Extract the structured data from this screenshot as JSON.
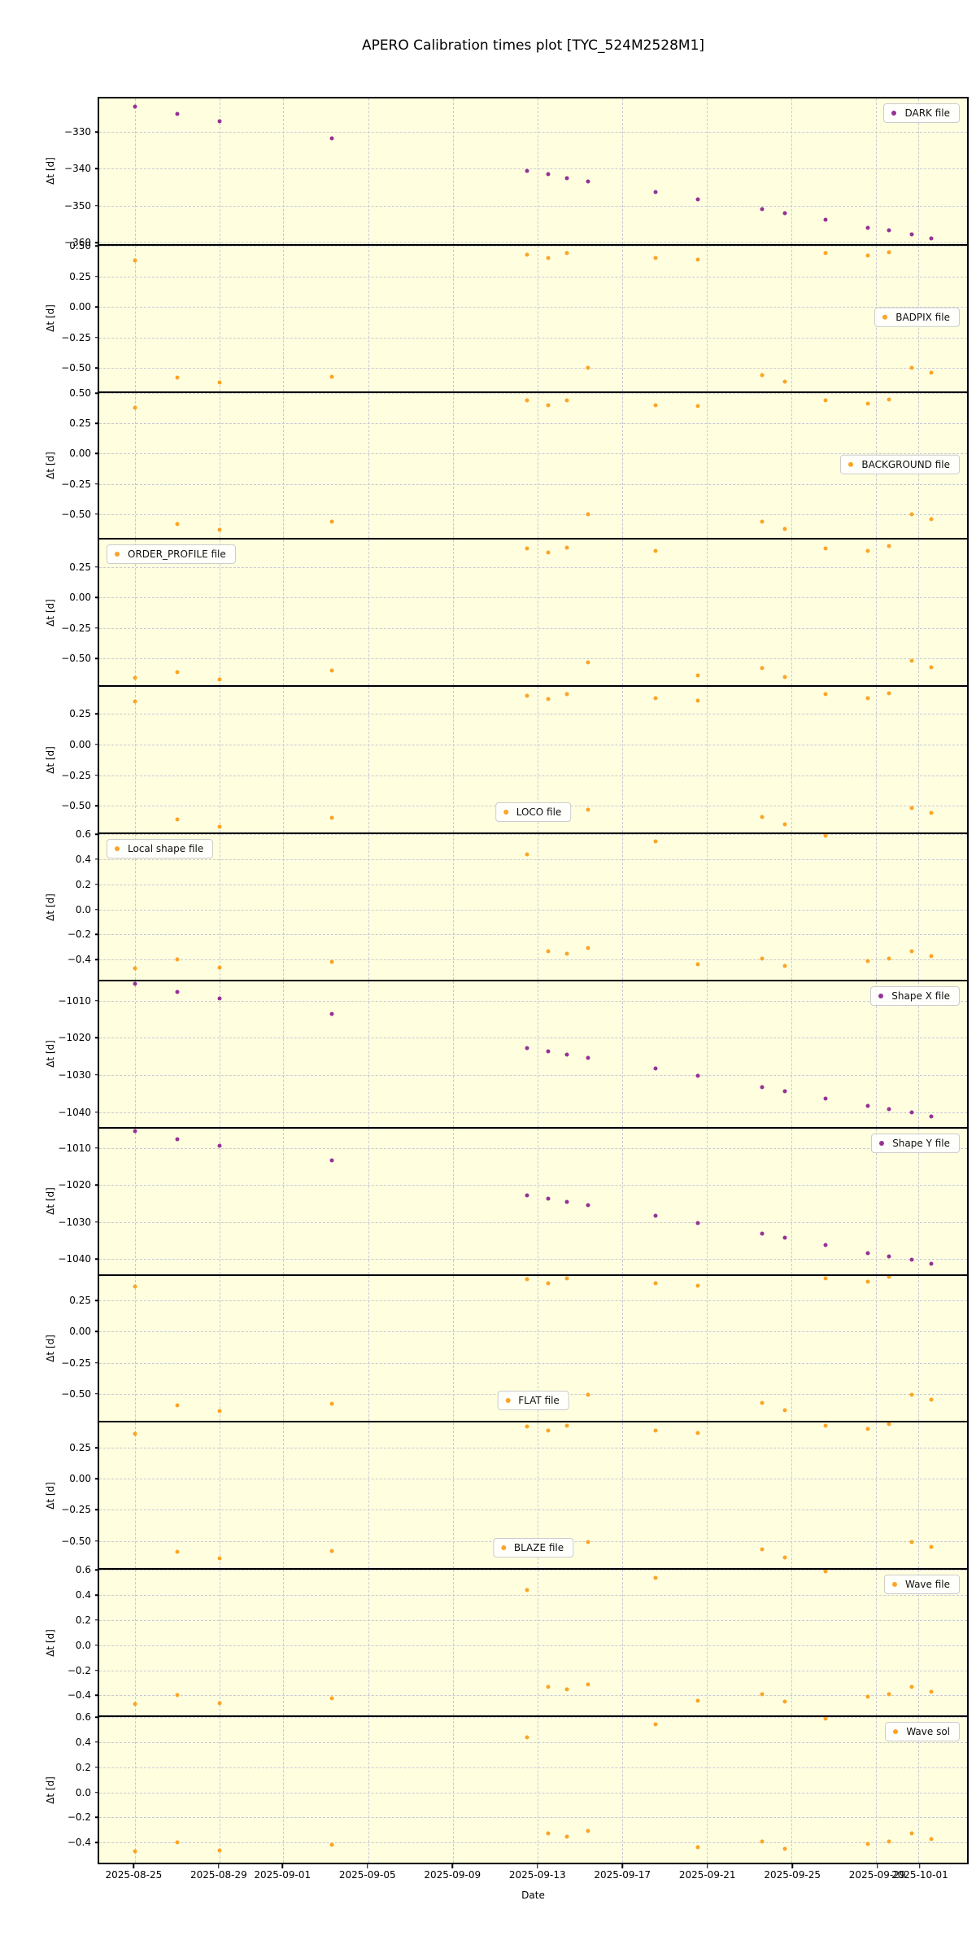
{
  "title": "APERO Calibration times plot [TYC_524M2528M1]",
  "xlabel": "Date",
  "ylabel": "Δt [d]",
  "colors": {
    "orange": "#FCA426",
    "purple": "#953296",
    "panel_background": "#FFFFE0",
    "grid": "#C9C9D4",
    "axis_text": "#000000",
    "legend_border": "#CCCCCC"
  },
  "x_axis": {
    "label": "Date",
    "xlim_days": [
      -1.7,
      39.3
    ],
    "tick_days": [
      0,
      4,
      7,
      11,
      15,
      19,
      23,
      27,
      31,
      35,
      37
    ],
    "tick_labels": [
      "2025-08-25",
      "2025-08-29",
      "2025-09-01",
      "2025-09-05",
      "2025-09-09",
      "2025-09-13",
      "2025-09-17",
      "2025-09-21",
      "2025-09-25",
      "2025-09-29",
      "2025-10-01"
    ],
    "point_days": [
      0,
      2,
      4,
      9.3,
      18.5,
      19.5,
      20.4,
      21.4,
      24.6,
      26.6,
      29.6,
      30.7,
      32.6,
      34.6,
      35.6,
      36.7,
      37.6
    ],
    "point_dates": [
      "2025-08-25",
      "2025-08-27",
      "2025-08-29",
      "2025-09-03",
      "2025-09-12",
      "2025-09-13",
      "2025-09-14",
      "2025-09-15",
      "2025-09-18",
      "2025-09-20",
      "2025-09-23",
      "2025-09-24",
      "2025-09-26",
      "2025-09-28",
      "2025-09-29",
      "2025-09-30",
      "2025-10-01"
    ]
  },
  "chart_data": [
    {
      "type": "scatter",
      "name": "DARK file",
      "legend": "DARK file",
      "legend_pos": "top-right",
      "color": "purple",
      "ylabel": "Δt [d]",
      "ytick_vals": [
        -330,
        -340,
        -350,
        -360
      ],
      "ytick_labels": [
        "−330",
        "−340",
        "−350",
        "−360"
      ],
      "ylim": [
        -360.4,
        -320.9
      ],
      "values": [
        -323.0,
        -325.0,
        -327.0,
        -331.8,
        -340.5,
        -341.5,
        -342.5,
        -343.4,
        -346.2,
        -348.2,
        -350.9,
        -352.0,
        -353.9,
        -356.0,
        -356.7,
        -357.7,
        -358.8
      ]
    },
    {
      "type": "scatter",
      "name": "BADPIX file",
      "legend": "BADPIX file",
      "legend_pos": "mid-right",
      "color": "orange",
      "ylabel": "Δt [d]",
      "ytick_vals": [
        0.5,
        0.25,
        0.0,
        -0.25,
        -0.5
      ],
      "ytick_labels": [
        "0.50",
        "0.25",
        "0.00",
        "−0.25",
        "−0.50"
      ],
      "ylim": [
        -0.69,
        0.503
      ],
      "values": [
        0.38,
        -0.58,
        -0.62,
        -0.57,
        0.43,
        0.4,
        0.44,
        -0.5,
        0.4,
        0.39,
        -0.56,
        -0.61,
        0.44,
        0.42,
        0.45,
        -0.5,
        -0.54
      ]
    },
    {
      "type": "scatter",
      "name": "BACKGROUND file",
      "legend": "BACKGROUND file",
      "legend_pos": "mid-right",
      "color": "orange",
      "ylabel": "Δt [d]",
      "ytick_vals": [
        0.5,
        0.25,
        0.0,
        -0.25,
        -0.5
      ],
      "ytick_labels": [
        "0.50",
        "0.25",
        "0.00",
        "−0.25",
        "−0.50"
      ],
      "ylim": [
        -0.7,
        0.503
      ],
      "values": [
        0.38,
        -0.58,
        -0.63,
        -0.56,
        0.44,
        0.4,
        0.44,
        -0.5,
        0.4,
        0.39,
        -0.56,
        -0.62,
        0.44,
        0.41,
        0.45,
        -0.5,
        -0.54
      ]
    },
    {
      "type": "scatter",
      "name": "ORDER_PROFILE file",
      "legend": "ORDER_PROFILE file",
      "legend_pos": "top-left",
      "color": "orange",
      "ylabel": "Δt [d]",
      "ytick_vals": [
        0.25,
        0.0,
        -0.25,
        -0.5
      ],
      "ytick_labels": [
        "0.25",
        "0.00",
        "−0.25",
        "−0.50"
      ],
      "ylim": [
        -0.72,
        0.47
      ],
      "values": [
        -0.66,
        -0.61,
        -0.67,
        -0.6,
        0.4,
        0.37,
        0.41,
        -0.53,
        0.38,
        -0.64,
        -0.58,
        -0.65,
        0.4,
        0.38,
        0.42,
        -0.52,
        -0.57
      ]
    },
    {
      "type": "scatter",
      "name": "LOCO file",
      "legend": "LOCO file",
      "legend_pos": "bottom-center",
      "color": "orange",
      "ylabel": "Δt [d]",
      "ytick_vals": [
        0.25,
        0.0,
        -0.25,
        -0.5
      ],
      "ytick_labels": [
        "0.25",
        "0.00",
        "−0.25",
        "−0.50"
      ],
      "ylim": [
        -0.72,
        0.47
      ],
      "values": [
        0.35,
        -0.61,
        -0.67,
        -0.6,
        0.4,
        0.37,
        0.41,
        -0.53,
        0.38,
        0.36,
        -0.59,
        -0.65,
        0.41,
        0.38,
        0.42,
        -0.52,
        -0.56
      ]
    },
    {
      "type": "scatter",
      "name": "Local shape file",
      "legend": "Local shape file",
      "legend_pos": "top-left",
      "color": "orange",
      "ylabel": "Δt [d]",
      "ytick_vals": [
        0.6,
        0.4,
        0.2,
        0.0,
        -0.2,
        -0.4
      ],
      "ytick_labels": [
        "0.6",
        "0.4",
        "0.2",
        "0.0",
        "−0.2",
        "−0.4"
      ],
      "ylim": [
        -0.56,
        0.6
      ],
      "values": [
        -0.47,
        -0.4,
        -0.46,
        -0.42,
        0.44,
        -0.33,
        -0.35,
        -0.31,
        0.54,
        -0.44,
        -0.39,
        -0.45,
        0.59,
        -0.41,
        -0.39,
        -0.33,
        -0.37
      ]
    },
    {
      "type": "scatter",
      "name": "Shape X file",
      "legend": "Shape X file",
      "legend_pos": "top-right",
      "color": "purple",
      "ylabel": "Δt [d]",
      "ytick_vals": [
        -1010,
        -1020,
        -1030,
        -1040
      ],
      "ytick_labels": [
        "−1010",
        "−1020",
        "−1030",
        "−1040"
      ],
      "ylim": [
        -1044.0,
        -1004.8
      ],
      "values": [
        -1005.5,
        -1007.6,
        -1009.5,
        -1013.5,
        -1022.8,
        -1023.6,
        -1024.5,
        -1025.5,
        -1028.3,
        -1030.2,
        -1033.2,
        -1034.3,
        -1036.3,
        -1038.4,
        -1039.2,
        -1040.2,
        -1041.2
      ]
    },
    {
      "type": "scatter",
      "name": "Shape Y file",
      "legend": "Shape Y file",
      "legend_pos": "top-right",
      "color": "purple",
      "ylabel": "Δt [d]",
      "ytick_vals": [
        -1010,
        -1020,
        -1030,
        -1040
      ],
      "ytick_labels": [
        "−1010",
        "−1020",
        "−1030",
        "−1040"
      ],
      "ylim": [
        -1044.0,
        -1004.8
      ],
      "values": [
        -1005.5,
        -1007.6,
        -1009.5,
        -1013.5,
        -1022.8,
        -1023.6,
        -1024.5,
        -1025.5,
        -1028.3,
        -1030.2,
        -1033.2,
        -1034.3,
        -1036.3,
        -1038.4,
        -1039.2,
        -1040.2,
        -1041.2
      ]
    },
    {
      "type": "scatter",
      "name": "FLAT file",
      "legend": "FLAT file",
      "legend_pos": "bottom-center",
      "color": "orange",
      "ylabel": "Δt [d]",
      "ytick_vals": [
        0.25,
        0.0,
        -0.25,
        -0.5
      ],
      "ytick_labels": [
        "0.25",
        "0.00",
        "−0.25",
        "−0.50"
      ],
      "ylim": [
        -0.72,
        0.45
      ],
      "values": [
        0.36,
        -0.59,
        -0.64,
        -0.58,
        0.42,
        0.39,
        0.43,
        -0.51,
        0.39,
        0.37,
        -0.57,
        -0.63,
        0.43,
        0.4,
        0.44,
        -0.51,
        -0.55
      ]
    },
    {
      "type": "scatter",
      "name": "BLAZE file",
      "legend": "BLAZE file",
      "legend_pos": "bottom-center",
      "color": "orange",
      "ylabel": "Δt [d]",
      "ytick_vals": [
        0.25,
        0.0,
        -0.25,
        -0.5
      ],
      "ytick_labels": [
        "0.25",
        "0.00",
        "−0.25",
        "−0.50"
      ],
      "ylim": [
        -0.72,
        0.45
      ],
      "values": [
        0.36,
        -0.59,
        -0.64,
        -0.58,
        0.42,
        0.39,
        0.43,
        -0.51,
        0.39,
        0.37,
        -0.57,
        -0.63,
        0.43,
        0.4,
        0.44,
        -0.51,
        -0.55
      ]
    },
    {
      "type": "scatter",
      "name": "Wave file",
      "legend": "Wave file",
      "legend_pos": "top-right",
      "color": "orange",
      "ylabel": "Δt [d]",
      "ytick_vals": [
        0.6,
        0.4,
        0.2,
        0.0,
        -0.2,
        -0.4
      ],
      "ytick_labels": [
        "0.6",
        "0.4",
        "0.2",
        "0.0",
        "−0.2",
        "−0.4"
      ],
      "ylim": [
        -0.56,
        0.6
      ],
      "values": [
        -0.47,
        -0.4,
        -0.46,
        -0.42,
        0.44,
        -0.33,
        -0.35,
        -0.31,
        0.54,
        -0.44,
        -0.39,
        -0.45,
        0.59,
        -0.41,
        -0.39,
        -0.33,
        -0.37
      ]
    },
    {
      "type": "scatter",
      "name": "Wave sol",
      "legend": "Wave sol",
      "legend_pos": "top-right",
      "color": "orange",
      "ylabel": "Δt [d]",
      "ytick_vals": [
        0.6,
        0.4,
        0.2,
        0.0,
        -0.2,
        -0.4
      ],
      "ytick_labels": [
        "0.6",
        "0.4",
        "0.2",
        "0.0",
        "−0.2",
        "−0.4"
      ],
      "ylim": [
        -0.56,
        0.6
      ],
      "values": [
        -0.47,
        -0.4,
        -0.46,
        -0.42,
        0.44,
        -0.33,
        -0.35,
        -0.31,
        0.54,
        -0.44,
        -0.39,
        -0.45,
        0.59,
        -0.41,
        -0.39,
        -0.33,
        -0.37
      ]
    }
  ]
}
